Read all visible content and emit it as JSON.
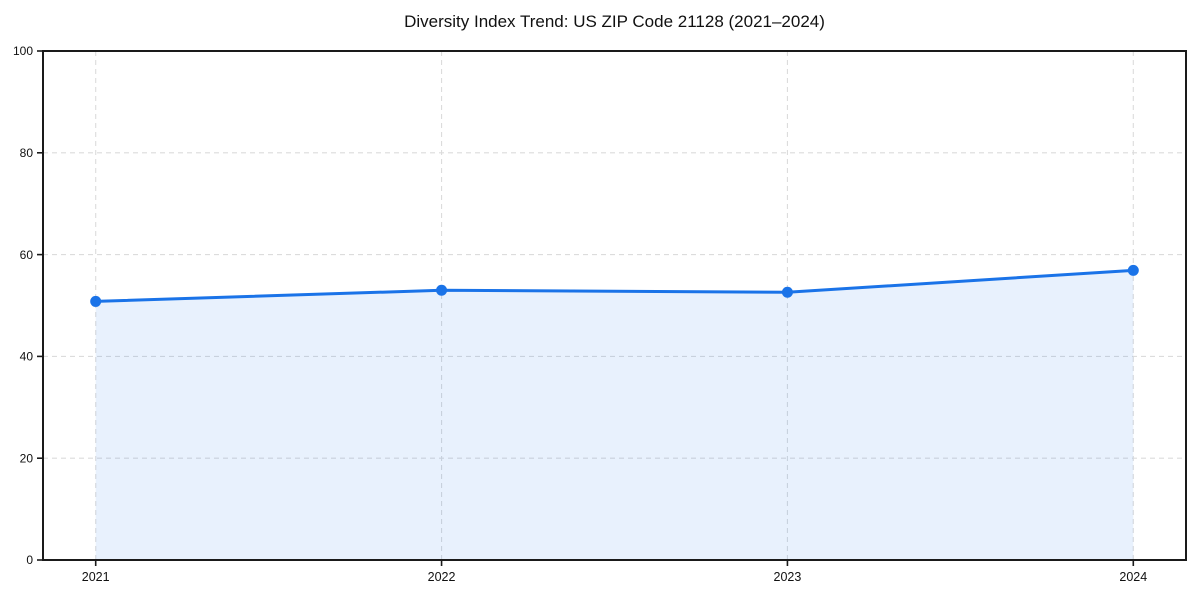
{
  "chart_data": {
    "type": "line",
    "title": "Diversity Index Trend: US ZIP Code 21128 (2021–2024)",
    "categories": [
      "2021",
      "2022",
      "2023",
      "2024"
    ],
    "values": [
      50.8,
      53.0,
      52.6,
      56.9
    ],
    "xlabel": "",
    "ylabel": "",
    "ylim": [
      0,
      100
    ],
    "yticks": [
      0,
      20,
      40,
      60,
      80,
      100
    ],
    "grid": true,
    "grid_style": "dashed",
    "area_fill": true,
    "legend": "none",
    "colors": {
      "line": "#1a73e8",
      "marker": "#1a73e8",
      "fill": "#1a73e8",
      "fill_opacity": 0.1,
      "grid": "#dcdcdc",
      "axis": "#1a1a1a",
      "text": "#111111",
      "background": "#ffffff"
    }
  }
}
